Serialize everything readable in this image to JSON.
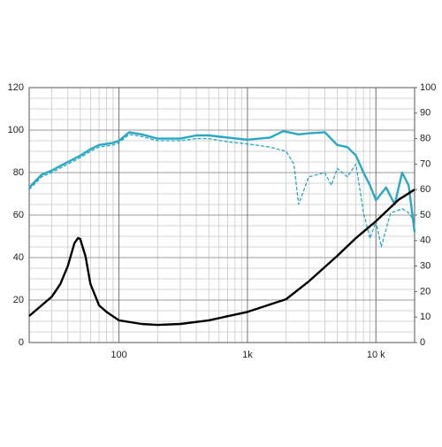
{
  "chart_data": {
    "type": "line",
    "xscale": "log",
    "grid": true,
    "xlim": [
      20,
      20000
    ],
    "xticks": [
      100,
      {
        "value": 1000,
        "label": "1k"
      },
      {
        "value": 10000,
        "label": "10 k"
      }
    ],
    "ylim": [
      0,
      120
    ],
    "yticks": [
      0,
      20,
      40,
      60,
      80,
      100,
      120
    ],
    "y2lim": [
      0,
      100
    ],
    "y2ticks": [
      0,
      10,
      20,
      30,
      40,
      50,
      60,
      70,
      80,
      90,
      100
    ],
    "series": [
      {
        "color": "#29a8c3",
        "style": "solid",
        "x": [
          20,
          25,
          30,
          40,
          50,
          60,
          70,
          90,
          100,
          120,
          150,
          200,
          300,
          400,
          500,
          700,
          1000,
          1500,
          1900,
          2500,
          3000,
          4000,
          5000,
          6000,
          7000,
          8000,
          9000,
          10000,
          12000,
          14000,
          16000,
          18000,
          20000
        ],
        "values": [
          73,
          79,
          81,
          85,
          88,
          91,
          93,
          94,
          95,
          99,
          98,
          96,
          96,
          97.5,
          97.5,
          96.5,
          95.5,
          96.5,
          99.5,
          98,
          98.5,
          99,
          93,
          92,
          88,
          80,
          74,
          67,
          73,
          65,
          80,
          74,
          52
        ]
      },
      {
        "color": "#29a8c3",
        "style": "dashed",
        "x": [
          20,
          25,
          30,
          40,
          50,
          60,
          70,
          90,
          100,
          120,
          150,
          200,
          300,
          400,
          500,
          700,
          1000,
          1500,
          2000,
          2300,
          2500,
          3000,
          4000,
          4500,
          5000,
          6000,
          7000,
          8000,
          9000,
          10000,
          11000,
          13000,
          16000,
          18000,
          20000
        ],
        "values": [
          72,
          78,
          80,
          84,
          87,
          90,
          92,
          93,
          94,
          98,
          97,
          95,
          95,
          96,
          96,
          94.5,
          93.5,
          92,
          90,
          84,
          65,
          78,
          80,
          74,
          82,
          78,
          84,
          61,
          49,
          57,
          45,
          61,
          63,
          61,
          57
        ]
      },
      {
        "color": "#000000",
        "style": "solid",
        "axis": "y2",
        "x": [
          20,
          25,
          30,
          35,
          40,
          45,
          48,
          50,
          55,
          60,
          70,
          80,
          100,
          150,
          200,
          300,
          500,
          1000,
          2000,
          3000,
          5000,
          7000,
          10000,
          15000,
          20000
        ],
        "values": [
          10.4,
          14.6,
          18,
          23,
          30,
          39,
          41,
          40.6,
          33.7,
          23,
          14.6,
          12,
          8.7,
          7.3,
          6.9,
          7.3,
          8.7,
          12,
          17,
          24,
          34,
          41,
          47.6,
          56,
          60
        ]
      }
    ]
  }
}
